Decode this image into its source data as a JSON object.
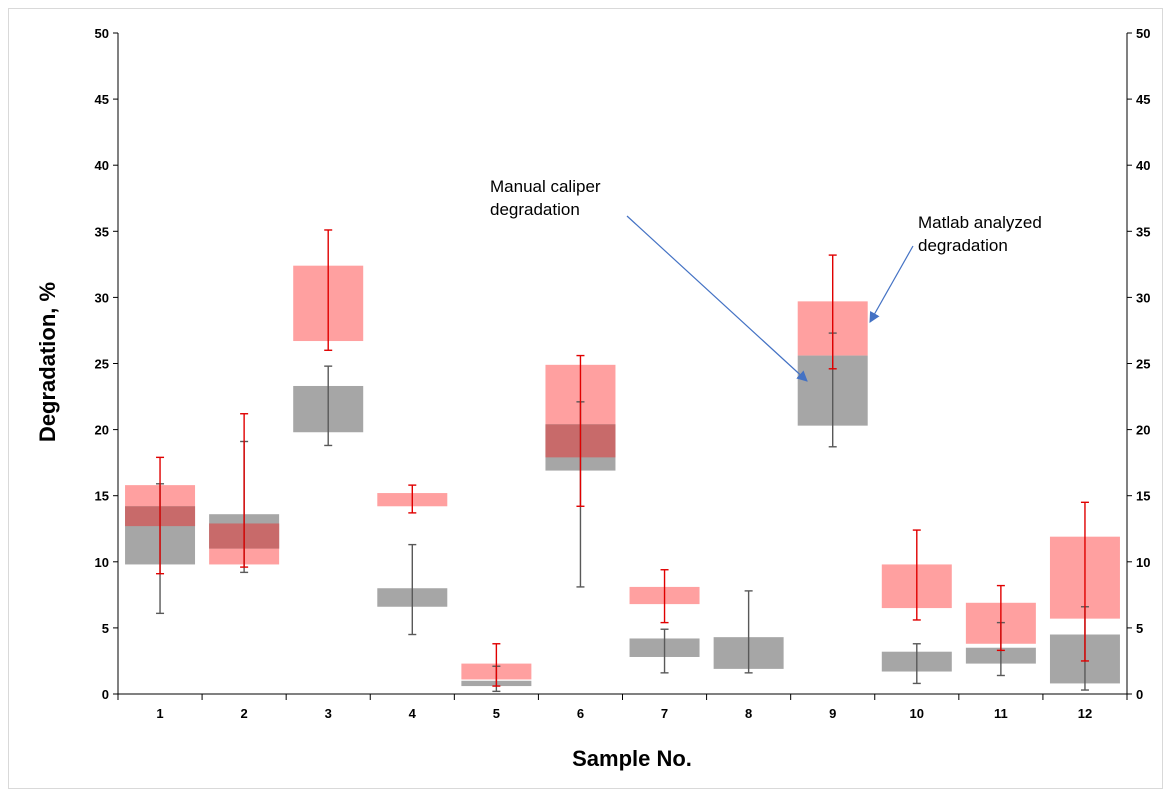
{
  "chart_data": {
    "type": "box",
    "ylabel": "Degradation, %",
    "xlabel": "Sample No.",
    "categories": [
      "1",
      "2",
      "3",
      "4",
      "5",
      "6",
      "7",
      "8",
      "9",
      "10",
      "11",
      "12"
    ],
    "ylim": [
      0,
      50
    ],
    "y_ticks": [
      0,
      5,
      10,
      15,
      20,
      25,
      30,
      35,
      40,
      45,
      50
    ],
    "secondary_y_axis": true,
    "grid": false,
    "colors": {
      "manual": "#ffa0a0",
      "manual_whisker": "#e00000",
      "matlab": "#a6a6a6",
      "matlab_whisker": "#595959",
      "overlap": "#c86a6a"
    },
    "series": [
      {
        "key": "manual",
        "boxes": [
          {
            "q1": 12.7,
            "q3": 15.8,
            "lo": 9.1,
            "hi": 17.9
          },
          {
            "q1": 9.8,
            "q3": 12.9,
            "lo": 9.6,
            "hi": 21.2
          },
          {
            "q1": 26.7,
            "q3": 32.4,
            "lo": 26.0,
            "hi": 35.1
          },
          {
            "q1": 14.2,
            "q3": 15.2,
            "lo": 13.7,
            "hi": 15.8
          },
          {
            "q1": 1.1,
            "q3": 2.3,
            "lo": 0.6,
            "hi": 3.8
          },
          {
            "q1": 17.9,
            "q3": 24.9,
            "lo": 14.2,
            "hi": 25.6
          },
          {
            "q1": 6.8,
            "q3": 8.1,
            "lo": 5.4,
            "hi": 9.4
          },
          null,
          {
            "q1": 25.6,
            "q3": 29.7,
            "lo": 24.6,
            "hi": 33.2
          },
          {
            "q1": 6.5,
            "q3": 9.8,
            "lo": 5.6,
            "hi": 12.4
          },
          {
            "q1": 3.8,
            "q3": 6.9,
            "lo": 3.3,
            "hi": 8.2
          },
          {
            "q1": 5.7,
            "q3": 11.9,
            "lo": 2.5,
            "hi": 14.5
          }
        ]
      },
      {
        "key": "matlab",
        "boxes": [
          {
            "q1": 9.8,
            "q3": 14.2,
            "lo": 6.1,
            "hi": 15.9
          },
          {
            "q1": 11.0,
            "q3": 13.6,
            "lo": 9.2,
            "hi": 19.1
          },
          {
            "q1": 19.8,
            "q3": 23.3,
            "lo": 18.8,
            "hi": 24.8
          },
          {
            "q1": 6.6,
            "q3": 8.0,
            "lo": 4.5,
            "hi": 11.3
          },
          {
            "q1": 0.6,
            "q3": 1.0,
            "lo": 0.2,
            "hi": 2.1
          },
          {
            "q1": 16.9,
            "q3": 20.4,
            "lo": 8.1,
            "hi": 22.1
          },
          {
            "q1": 2.8,
            "q3": 4.2,
            "lo": 1.6,
            "hi": 4.9
          },
          {
            "q1": 1.9,
            "q3": 4.3,
            "lo": 1.6,
            "hi": 7.8
          },
          {
            "q1": 20.3,
            "q3": 25.6,
            "lo": 18.7,
            "hi": 27.3
          },
          {
            "q1": 1.7,
            "q3": 3.2,
            "lo": 0.8,
            "hi": 3.8
          },
          {
            "q1": 2.3,
            "q3": 3.5,
            "lo": 1.4,
            "hi": 5.4
          },
          {
            "q1": 0.8,
            "q3": 4.5,
            "lo": 0.3,
            "hi": 6.6
          }
        ]
      }
    ],
    "annotations": [
      {
        "key": "manual",
        "lines": [
          "Manual caliper",
          "degradation"
        ],
        "target_category": "9",
        "target_value": 22.3
      },
      {
        "key": "matlab",
        "lines": [
          "Matlab analyzed",
          "degradation"
        ],
        "target_category": "9",
        "target_value": 28.0
      }
    ]
  }
}
